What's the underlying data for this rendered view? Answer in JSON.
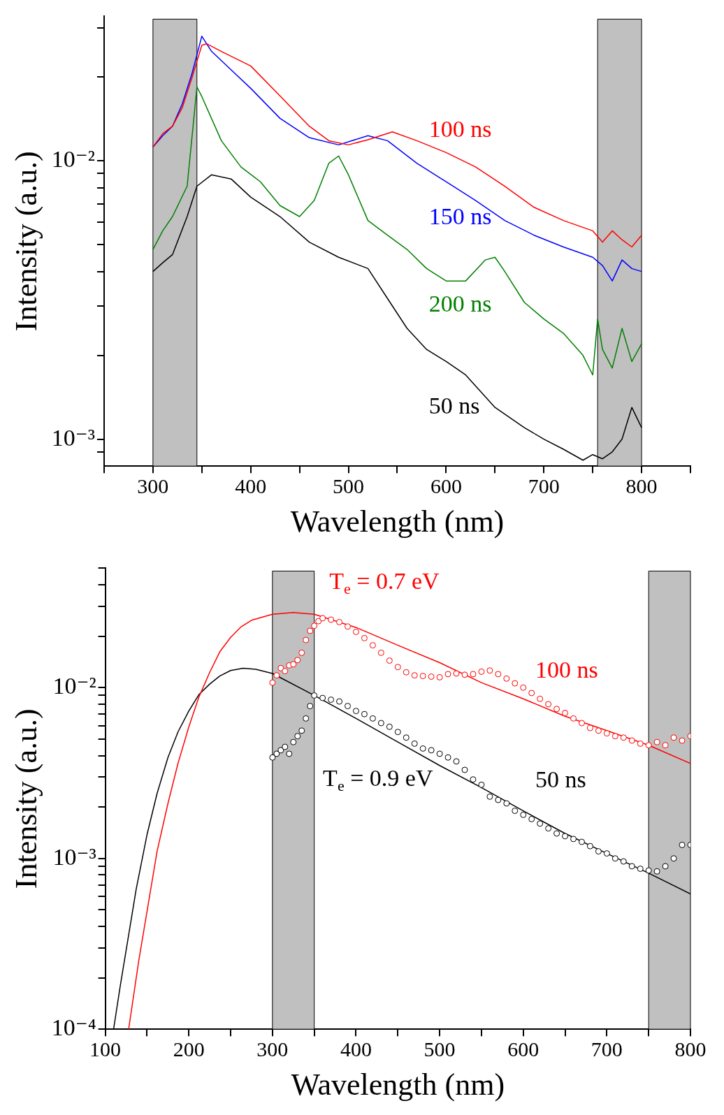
{
  "chart_data": [
    {
      "type": "line",
      "xlabel": "Wavelength (nm)",
      "ylabel": "Intensity (a.u.)",
      "log": "y",
      "xlim": [
        250,
        850
      ],
      "xticks": [
        {
          "value": 250,
          "label": null
        },
        300,
        {
          "value": 350,
          "label": null
        },
        400,
        {
          "value": 450,
          "label": null
        },
        500,
        {
          "value": 550,
          "label": null
        },
        600,
        {
          "value": 650,
          "label": null
        },
        700,
        {
          "value": 750,
          "label": null
        },
        800,
        {
          "value": 850,
          "label": null
        }
      ],
      "ylim": [
        0.0008,
        0.033
      ],
      "yticks": [
        {
          "value": 0.0009,
          "label": null
        },
        {
          "value": 0.001,
          "label": "10⁻³"
        },
        {
          "value": 0.002,
          "label": null
        },
        {
          "value": 0.003,
          "label": null
        },
        {
          "value": 0.004,
          "label": null
        },
        {
          "value": 0.005,
          "label": null
        },
        {
          "value": 0.006,
          "label": null
        },
        {
          "value": 0.007,
          "label": null
        },
        {
          "value": 0.008,
          "label": null
        },
        {
          "value": 0.009,
          "label": null
        },
        {
          "value": 0.01,
          "label": "10⁻²"
        },
        {
          "value": 0.02,
          "label": null
        },
        {
          "value": 0.03,
          "label": null
        }
      ],
      "bands": [
        {
          "axis": "x",
          "from": 300,
          "to": 345,
          "color": "#c0c0c0"
        },
        {
          "axis": "x",
          "from": 755,
          "to": 800,
          "color": "#c0c0c0"
        }
      ],
      "series": [
        {
          "name": "100 ns",
          "color": "#ff0000",
          "x": [
            300,
            310,
            320,
            330,
            340,
            350,
            355,
            370,
            400,
            430,
            460,
            480,
            500,
            520,
            545,
            570,
            600,
            630,
            660,
            690,
            720,
            750,
            760,
            770,
            780,
            790,
            800
          ],
          "values": [
            0.0112,
            0.0125,
            0.0133,
            0.0155,
            0.0199,
            0.026,
            0.0263,
            0.0247,
            0.0219,
            0.0171,
            0.0133,
            0.0118,
            0.0114,
            0.0119,
            0.0127,
            0.0118,
            0.0107,
            0.0095,
            0.0081,
            0.0068,
            0.0061,
            0.0056,
            0.0051,
            0.0056,
            0.0052,
            0.0049,
            0.0054
          ]
        },
        {
          "name": "150 ns",
          "color": "#0000ff",
          "x": [
            300,
            310,
            320,
            330,
            340,
            350,
            360,
            380,
            400,
            430,
            460,
            490,
            520,
            540,
            570,
            600,
            630,
            660,
            690,
            720,
            750,
            760,
            770,
            780,
            790,
            800
          ],
          "values": [
            0.0112,
            0.0123,
            0.0133,
            0.016,
            0.0206,
            0.028,
            0.0247,
            0.0212,
            0.0182,
            0.0142,
            0.0121,
            0.0114,
            0.0123,
            0.0118,
            0.0098,
            0.0084,
            0.0072,
            0.0061,
            0.0054,
            0.0049,
            0.0045,
            0.0042,
            0.0037,
            0.0044,
            0.0041,
            0.004
          ]
        },
        {
          "name": "200 ns",
          "color": "#008000",
          "x": [
            300,
            310,
            320,
            335,
            345,
            350,
            370,
            390,
            410,
            430,
            450,
            465,
            480,
            490,
            500,
            520,
            540,
            560,
            580,
            600,
            620,
            640,
            650,
            660,
            680,
            700,
            720,
            740,
            750,
            755,
            760,
            770,
            780,
            790,
            800
          ],
          "values": [
            0.0048,
            0.0056,
            0.0063,
            0.0081,
            0.0184,
            0.017,
            0.0118,
            0.0095,
            0.0084,
            0.0069,
            0.0063,
            0.0072,
            0.0098,
            0.0104,
            0.0089,
            0.0061,
            0.0054,
            0.0048,
            0.0041,
            0.0037,
            0.0037,
            0.0044,
            0.0045,
            0.004,
            0.0031,
            0.0027,
            0.0024,
            0.002,
            0.0017,
            0.0027,
            0.0021,
            0.0018,
            0.0025,
            0.0019,
            0.0022
          ]
        },
        {
          "name": "50 ns",
          "color": "#000000",
          "x": [
            300,
            310,
            320,
            335,
            345,
            360,
            380,
            400,
            430,
            460,
            490,
            520,
            540,
            560,
            580,
            600,
            620,
            650,
            680,
            700,
            720,
            740,
            750,
            760,
            770,
            780,
            790,
            800
          ],
          "values": [
            0.004,
            0.0043,
            0.0046,
            0.0063,
            0.0081,
            0.0089,
            0.0086,
            0.0074,
            0.0063,
            0.0051,
            0.0045,
            0.0041,
            0.0032,
            0.0025,
            0.0021,
            0.0019,
            0.0017,
            0.0013,
            0.0011,
            0.001,
            0.00092,
            0.00084,
            0.00088,
            0.00085,
            0.0009,
            0.001,
            0.0013,
            0.0011
          ]
        }
      ]
    },
    {
      "type": "scatter",
      "xlabel": "Wavelength (nm)",
      "ylabel": "Intensity (a.u.)",
      "log": "y",
      "xlim": [
        100,
        800
      ],
      "xticks": [
        100,
        {
          "value": 150,
          "label": null
        },
        200,
        {
          "value": 250,
          "label": null
        },
        300,
        {
          "value": 350,
          "label": null
        },
        400,
        {
          "value": 450,
          "label": null
        },
        500,
        {
          "value": 550,
          "label": null
        },
        600,
        {
          "value": 650,
          "label": null
        },
        700,
        {
          "value": 750,
          "label": null
        },
        800
      ],
      "ylim": [
        0.0001,
        0.05
      ],
      "yticks": [
        {
          "value": 0.0001,
          "label": "10⁻⁴"
        },
        {
          "value": 0.0002,
          "label": null
        },
        {
          "value": 0.0003,
          "label": null
        },
        {
          "value": 0.0004,
          "label": null
        },
        {
          "value": 0.0005,
          "label": null
        },
        {
          "value": 0.0006,
          "label": null
        },
        {
          "value": 0.0007,
          "label": null
        },
        {
          "value": 0.0008,
          "label": null
        },
        {
          "value": 0.0009,
          "label": null
        },
        {
          "value": 0.001,
          "label": "10⁻³"
        },
        {
          "value": 0.002,
          "label": null
        },
        {
          "value": 0.003,
          "label": null
        },
        {
          "value": 0.004,
          "label": null
        },
        {
          "value": 0.005,
          "label": null
        },
        {
          "value": 0.006,
          "label": null
        },
        {
          "value": 0.007,
          "label": null
        },
        {
          "value": 0.008,
          "label": null
        },
        {
          "value": 0.009,
          "label": null
        },
        {
          "value": 0.01,
          "label": "10⁻²"
        },
        {
          "value": 0.02,
          "label": null
        },
        {
          "value": 0.03,
          "label": null
        },
        {
          "value": 0.04,
          "label": null
        },
        {
          "value": 0.05,
          "label": null
        }
      ],
      "bands": [
        {
          "axis": "x",
          "from": 300,
          "to": 350,
          "color": "#c0c0c0"
        },
        {
          "axis": "x",
          "from": 750,
          "to": 800,
          "color": "#c0c0c0"
        }
      ],
      "series": [
        {
          "name": "100 ns",
          "type": "scatter",
          "marker": "circle",
          "color": "#ff0000",
          "x": [
            300,
            305,
            310,
            315,
            320,
            325,
            330,
            335,
            340,
            345,
            350,
            355,
            360,
            370,
            380,
            390,
            400,
            410,
            420,
            430,
            440,
            450,
            460,
            470,
            480,
            490,
            500,
            510,
            520,
            530,
            540,
            550,
            560,
            570,
            580,
            590,
            600,
            610,
            620,
            630,
            640,
            650,
            660,
            670,
            680,
            690,
            700,
            710,
            720,
            730,
            740,
            750,
            760,
            770,
            780,
            790,
            800
          ],
          "values": [
            0.0107,
            0.0118,
            0.013,
            0.0125,
            0.0135,
            0.0137,
            0.0145,
            0.016,
            0.019,
            0.0215,
            0.023,
            0.0245,
            0.0255,
            0.025,
            0.0242,
            0.0228,
            0.0212,
            0.0195,
            0.0177,
            0.016,
            0.0144,
            0.0132,
            0.0123,
            0.0118,
            0.0117,
            0.0116,
            0.0115,
            0.012,
            0.0121,
            0.0119,
            0.012,
            0.0124,
            0.0126,
            0.012,
            0.0113,
            0.0106,
            0.01,
            0.0093,
            0.0086,
            0.008,
            0.0075,
            0.0071,
            0.0066,
            0.0062,
            0.0058,
            0.0056,
            0.0054,
            0.0052,
            0.0051,
            0.0049,
            0.0047,
            0.0046,
            0.0048,
            0.0046,
            0.0051,
            0.0049,
            0.0052
          ]
        },
        {
          "name": "50 ns",
          "type": "scatter",
          "marker": "circle",
          "color": "#000000",
          "x": [
            300,
            305,
            310,
            315,
            320,
            325,
            330,
            335,
            340,
            345,
            350,
            360,
            370,
            380,
            390,
            400,
            410,
            420,
            430,
            440,
            450,
            460,
            470,
            480,
            490,
            500,
            510,
            520,
            530,
            540,
            550,
            560,
            570,
            580,
            590,
            600,
            610,
            620,
            630,
            640,
            650,
            660,
            670,
            680,
            690,
            700,
            710,
            720,
            730,
            740,
            750,
            760,
            770,
            780,
            790,
            800
          ],
          "values": [
            0.0039,
            0.0041,
            0.0043,
            0.0045,
            0.0041,
            0.0048,
            0.0052,
            0.0056,
            0.0066,
            0.0078,
            0.009,
            0.0087,
            0.0085,
            0.0083,
            0.0078,
            0.0073,
            0.007,
            0.0066,
            0.0062,
            0.0059,
            0.0055,
            0.0051,
            0.0047,
            0.0044,
            0.0043,
            0.0041,
            0.0039,
            0.0037,
            0.0033,
            0.0029,
            0.0027,
            0.0023,
            0.0022,
            0.0021,
            0.0019,
            0.0018,
            0.0017,
            0.0016,
            0.0015,
            0.0014,
            0.00135,
            0.0013,
            0.00125,
            0.00118,
            0.0011,
            0.00107,
            0.001,
            0.00096,
            0.0009,
            0.00087,
            0.00085,
            0.00084,
            0.0009,
            0.001,
            0.0012,
            0.0012
          ]
        },
        {
          "name": "T$_{e}$ = 0.7 eV",
          "type": "line",
          "marker": "none",
          "color": "#ff0000",
          "x": [
            128,
            140,
            150,
            162,
            175,
            187,
            200,
            212,
            225,
            237,
            250,
            262,
            275,
            300,
            325,
            350,
            400,
            450,
            500,
            550,
            600,
            650,
            700,
            750,
            800
          ],
          "values": [
            0.0001,
            0.00025,
            0.00049,
            0.0011,
            0.0021,
            0.0036,
            0.0059,
            0.0088,
            0.0123,
            0.0162,
            0.0197,
            0.0226,
            0.0248,
            0.0269,
            0.0275,
            0.0269,
            0.0225,
            0.0177,
            0.014,
            0.0107,
            0.0086,
            0.0068,
            0.0056,
            0.0046,
            0.0036
          ]
        },
        {
          "name": "T$_{e}$ = 0.9 eV",
          "type": "line",
          "marker": "none",
          "color": "#000000",
          "x": [
            110,
            118,
            125,
            137,
            150,
            162,
            175,
            187,
            200,
            212,
            225,
            237,
            250,
            265,
            280,
            300,
            350,
            400,
            450,
            500,
            550,
            600,
            650,
            700,
            750,
            800
          ],
          "values": [
            0.0001,
            0.00018,
            0.00029,
            0.00066,
            0.00138,
            0.0024,
            0.0039,
            0.0055,
            0.0073,
            0.0091,
            0.0105,
            0.0117,
            0.0126,
            0.013,
            0.0128,
            0.0121,
            0.009,
            0.0066,
            0.0048,
            0.0035,
            0.0026,
            0.0019,
            0.0014,
            0.00107,
            0.00082,
            0.00062
          ]
        }
      ]
    }
  ]
}
